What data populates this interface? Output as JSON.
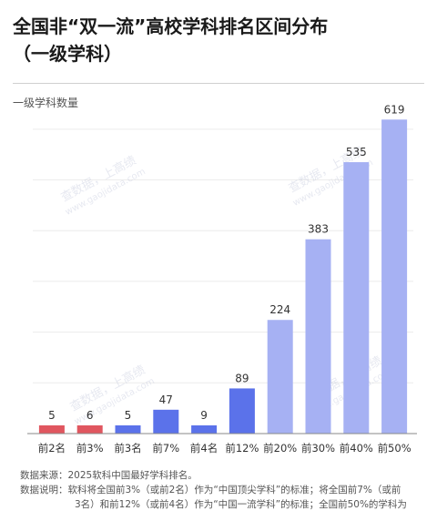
{
  "header": {
    "title_line1": "全国非“双一流”高校学科排名区间分布",
    "title_line2": "（一级学科）"
  },
  "chart_data": {
    "type": "bar",
    "title": "全国非“双一流”高校学科排名区间分布（一级学科）",
    "ylabel": "一级学科数量",
    "xlabel": "",
    "categories": [
      "前2名",
      "前3%",
      "前3名",
      "前7%",
      "前4名",
      "前12%",
      "前20%",
      "前30%",
      "前40%",
      "前50%"
    ],
    "values": [
      5,
      6,
      5,
      47,
      9,
      89,
      224,
      383,
      535,
      619
    ],
    "colors": [
      "#e0565f",
      "#e0565f",
      "#5b72ea",
      "#5b72ea",
      "#5b72ea",
      "#5b72ea",
      "#a6b1f3",
      "#a6b1f3",
      "#a6b1f3",
      "#a6b1f3"
    ],
    "ylim": [
      0,
      650
    ],
    "grid": true
  },
  "watermark": {
    "text_line1": "查数据，上高绩",
    "text_line2": "www.gaojidata.com"
  },
  "notes": [
    {
      "key": "数据来源：",
      "text": "2025软科中国最好学科排名。"
    },
    {
      "key": "数据说明：",
      "text": "软科将全国前3%（或前2名）作为“中国顶尖学科”的标准；将全国前7%（或前"
    },
    {
      "key": "",
      "text": "3名）和前12%（或前4名）作为“中国一流学科”的标准；全国前50%的学科为"
    }
  ]
}
